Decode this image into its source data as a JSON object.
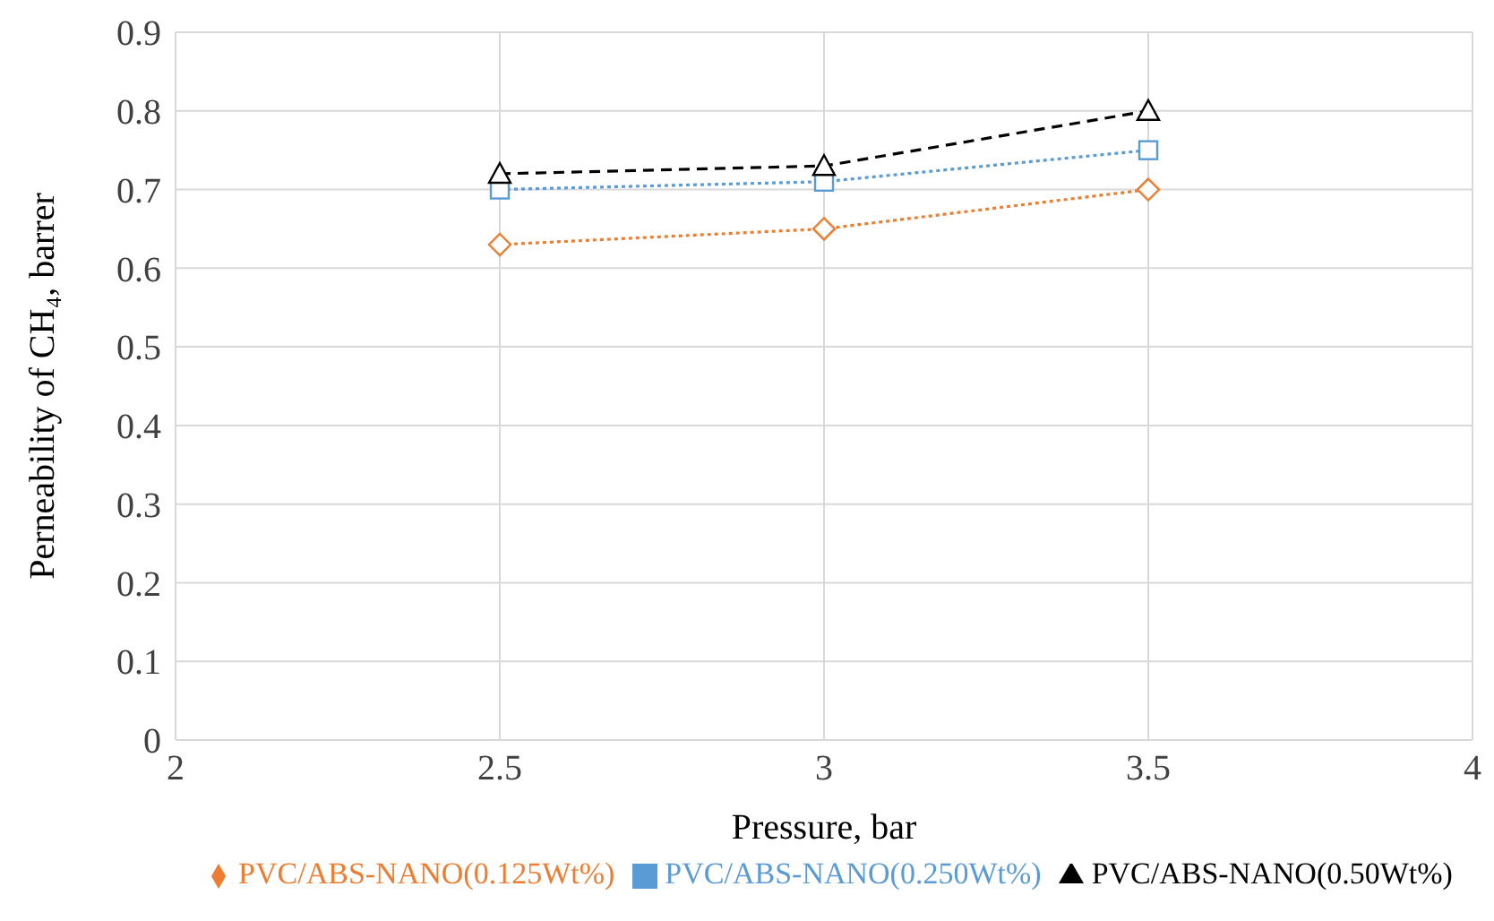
{
  "chart_data": {
    "type": "line",
    "xlabel": "Pressure, bar",
    "ylabel": "Perneability of CH₄, barrer",
    "x": [
      2.5,
      3,
      3.5
    ],
    "xlim": [
      2,
      4
    ],
    "xticks": [
      2,
      2.5,
      3,
      3.5,
      4
    ],
    "ylim": [
      0,
      0.9
    ],
    "yticks": [
      0,
      0.1,
      0.2,
      0.3,
      0.4,
      0.5,
      0.6,
      0.7,
      0.8,
      0.9
    ],
    "grid": true,
    "legend": "bottom",
    "series": [
      {
        "name": "PVC/ABS-NANO(0.125Wt%)",
        "color": "#ed7d31",
        "values": [
          0.63,
          0.65,
          0.7
        ],
        "marker": "diamond",
        "line_style": "dotted"
      },
      {
        "name": "PVC/ABS-NANO(0.250Wt%)",
        "color": "#5b9bd5",
        "values": [
          0.7,
          0.71,
          0.75
        ],
        "marker": "square",
        "line_style": "dotted"
      },
      {
        "name": "PVC/ABS-NANO(0.50Wt%)",
        "color": "#000000",
        "values": [
          0.72,
          0.73,
          0.8
        ],
        "marker": "triangle",
        "line_style": "dashed"
      }
    ]
  }
}
